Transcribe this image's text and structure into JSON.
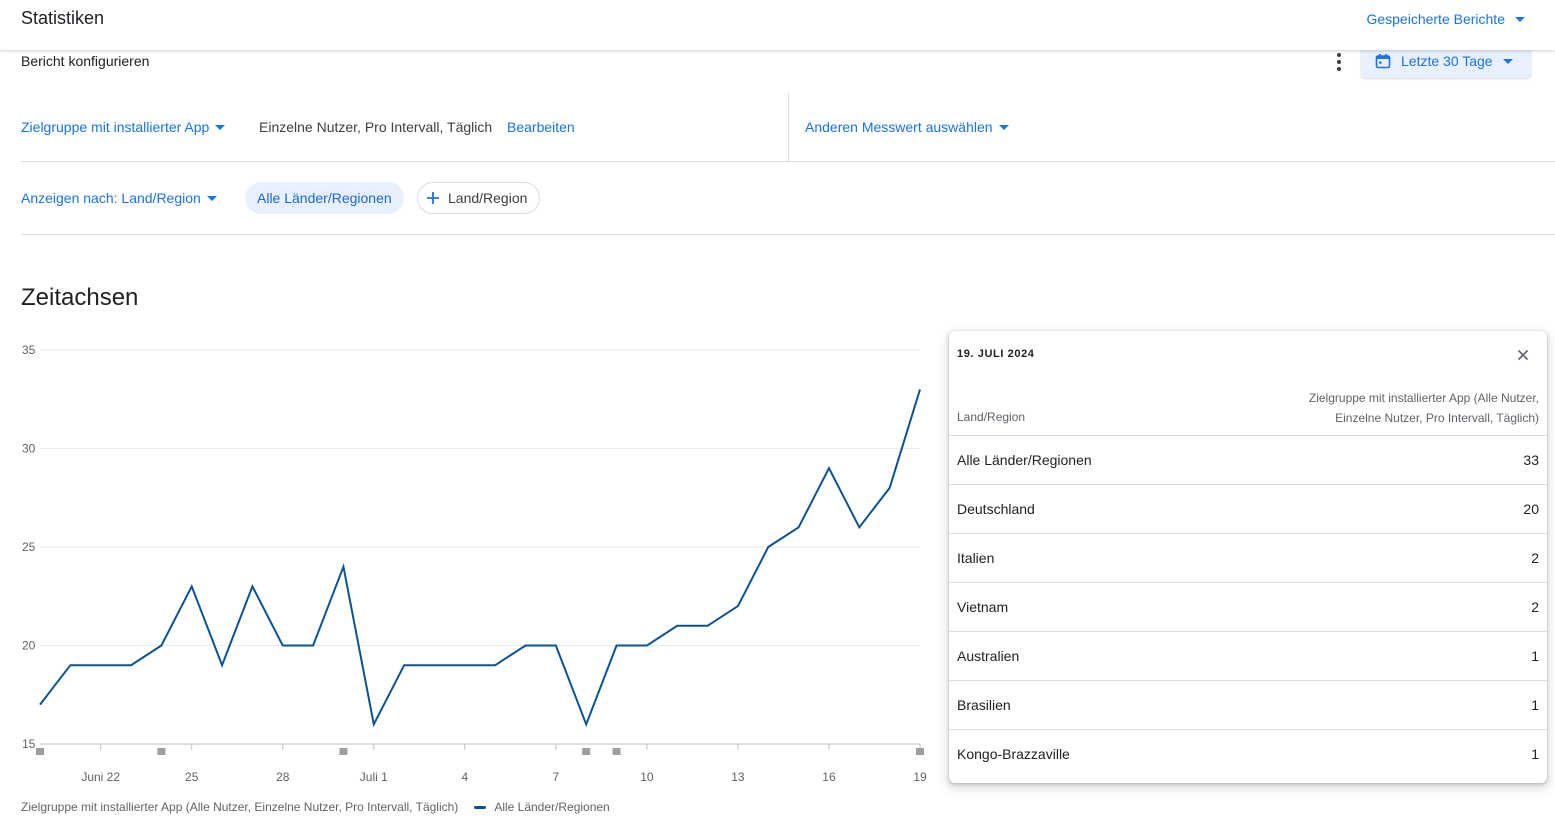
{
  "header": {
    "title": "Statistiken",
    "saved_reports_label": "Gespeicherte Berichte"
  },
  "toolbar": {
    "configure_label": "Bericht konfigurieren",
    "date_range_label": "Letzte 30 Tage"
  },
  "filters": {
    "audience_label": "Zielgruppe mit installierter App",
    "audience_description": "Einzelne Nutzer, Pro Intervall, Täglich",
    "edit_label": "Bearbeiten",
    "metric_label": "Anderen Messwert auswählen",
    "show_by_label": "Anzeigen nach: Land/Region",
    "chip_selected": "Alle Länder/Regionen",
    "chip_add_label": "Land/Region"
  },
  "section": {
    "title": "Zeitachsen"
  },
  "chart_data": {
    "type": "line",
    "x_tick_labels": [
      "Juni 22",
      "25",
      "28",
      "Juli 1",
      "4",
      "7",
      "10",
      "13",
      "16",
      "19"
    ],
    "y_tick_labels": [
      "15",
      "20",
      "25",
      "30",
      "35"
    ],
    "ylim": [
      15,
      35
    ],
    "grid": true,
    "x": [
      "Jun 20",
      "Jun 21",
      "Jun 22",
      "Jun 23",
      "Jun 24",
      "Jun 25",
      "Jun 26",
      "Jun 27",
      "Jun 28",
      "Jun 29",
      "Jun 30",
      "Jul 1",
      "Jul 2",
      "Jul 3",
      "Jul 4",
      "Jul 5",
      "Jul 6",
      "Jul 7",
      "Jul 8",
      "Jul 9",
      "Jul 10",
      "Jul 11",
      "Jul 12",
      "Jul 13",
      "Jul 14",
      "Jul 15",
      "Jul 16",
      "Jul 17",
      "Jul 18",
      "Jul 19"
    ],
    "series": [
      {
        "name": "Alle Länder/Regionen",
        "color": "#0b5394",
        "values": [
          17,
          19,
          19,
          19,
          20,
          23,
          19,
          23,
          20,
          20,
          24,
          16,
          19,
          19,
          19,
          19,
          20,
          20,
          16,
          20,
          20,
          21,
          21,
          22,
          25,
          26,
          29,
          26,
          28,
          33
        ]
      }
    ],
    "markers_on_dates": [
      "Jun 20",
      "Jun 24",
      "Jun 30",
      "Jul 8",
      "Jul 9",
      "Jul 19"
    ],
    "legend_title": "Zielgruppe mit installierter App (Alle Nutzer, Einzelne Nutzer, Pro Intervall, Täglich)",
    "legend_position": "bottom-left"
  },
  "tooltip": {
    "date": "19. JULI 2024",
    "column_region": "Land/Region",
    "column_value_line1": "Zielgruppe mit installierter App (Alle Nutzer,",
    "column_value_line2": "Einzelne Nutzer, Pro Intervall, Täglich)",
    "rows": [
      {
        "region": "Alle Länder/Regionen",
        "value": "33"
      },
      {
        "region": "Deutschland",
        "value": "20"
      },
      {
        "region": "Italien",
        "value": "2"
      },
      {
        "region": "Vietnam",
        "value": "2"
      },
      {
        "region": "Australien",
        "value": "1"
      },
      {
        "region": "Brasilien",
        "value": "1"
      },
      {
        "region": "Kongo-Brazzaville",
        "value": "1"
      }
    ]
  },
  "icons": {
    "calendar": "calendar-icon",
    "more": "more-vert-icon",
    "add": "plus-icon",
    "close": "close-icon",
    "dropdown": "caret-down-icon"
  },
  "colors": {
    "accent": "#1a73e8",
    "chip_bg": "#e8f0fe",
    "line": "#0b5394",
    "marker": "#9e9e9e"
  }
}
